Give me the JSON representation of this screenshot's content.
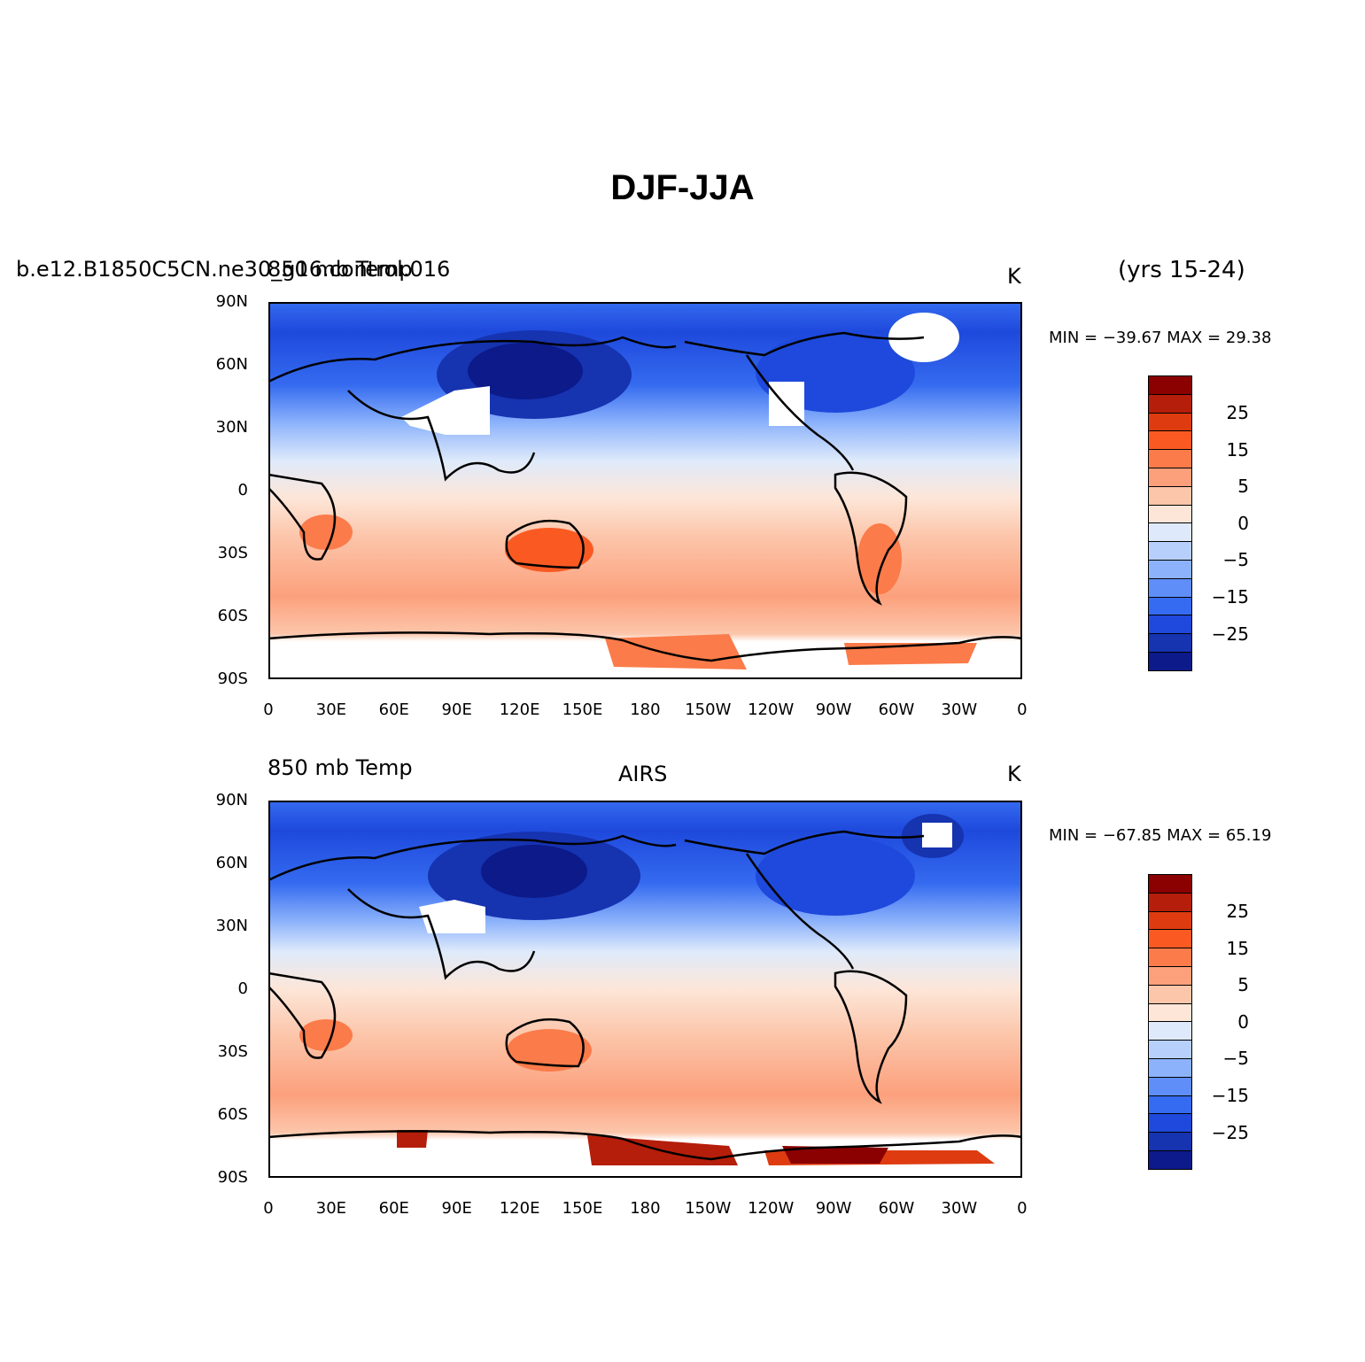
{
  "title": "DJF-JJA",
  "panels": [
    {
      "left_label_a": "b.e12.B1850C5CN.ne30_g16.control.016",
      "left_label_b": "850 mb Temp",
      "center_label": "",
      "right_label": "K",
      "extra_label": "(yrs 15-24)",
      "stats": "MIN = −39.67 MAX =  29.38"
    },
    {
      "left_label_a": "",
      "left_label_b": "850 mb Temp",
      "center_label": "AIRS",
      "right_label": "K",
      "extra_label": "",
      "stats": "MIN = −67.85 MAX =  65.19"
    }
  ],
  "lat_ticks": [
    "90N",
    "60N",
    "30N",
    "0",
    "30S",
    "60S",
    "90S"
  ],
  "lon_ticks": [
    "0",
    "30E",
    "60E",
    "90E",
    "120E",
    "150E",
    "180",
    "150W",
    "120W",
    "90W",
    "60W",
    "30W",
    "0"
  ],
  "colorbar": {
    "labels": [
      "25",
      "15",
      "5",
      "0",
      "−5",
      "−15",
      "−25"
    ],
    "colors": [
      "#8b0000",
      "#b51e0a",
      "#de3c10",
      "#fa5a22",
      "#fb7b4a",
      "#fca07c",
      "#fcc6ab",
      "#fde6d8",
      "#deeafb",
      "#b7d0fb",
      "#8cb2fb",
      "#5f8ef8",
      "#356bf0",
      "#1e49dc",
      "#1633b0",
      "#0c1a8a"
    ]
  },
  "chart_data": [
    {
      "type": "heatmap",
      "title": "850 mb Temp",
      "subtitle": "b.e12.B1850C5CN.ne30_g16.control.016 (yrs 15-24)",
      "units": "K",
      "x_range": [
        0,
        360
      ],
      "y_range": [
        -90,
        90
      ],
      "min": -39.67,
      "max": 29.38,
      "contour_levels": [
        -35,
        -30,
        -25,
        -20,
        -15,
        -10,
        -5,
        -2,
        0,
        2,
        5,
        10,
        15,
        20,
        25,
        30
      ]
    },
    {
      "type": "heatmap",
      "title": "850 mb Temp",
      "subtitle": "AIRS",
      "units": "K",
      "x_range": [
        0,
        360
      ],
      "y_range": [
        -90,
        90
      ],
      "min": -67.85,
      "max": 65.19,
      "contour_levels": [
        -35,
        -30,
        -25,
        -20,
        -15,
        -10,
        -5,
        -2,
        0,
        2,
        5,
        10,
        15,
        20,
        25,
        30
      ]
    }
  ]
}
